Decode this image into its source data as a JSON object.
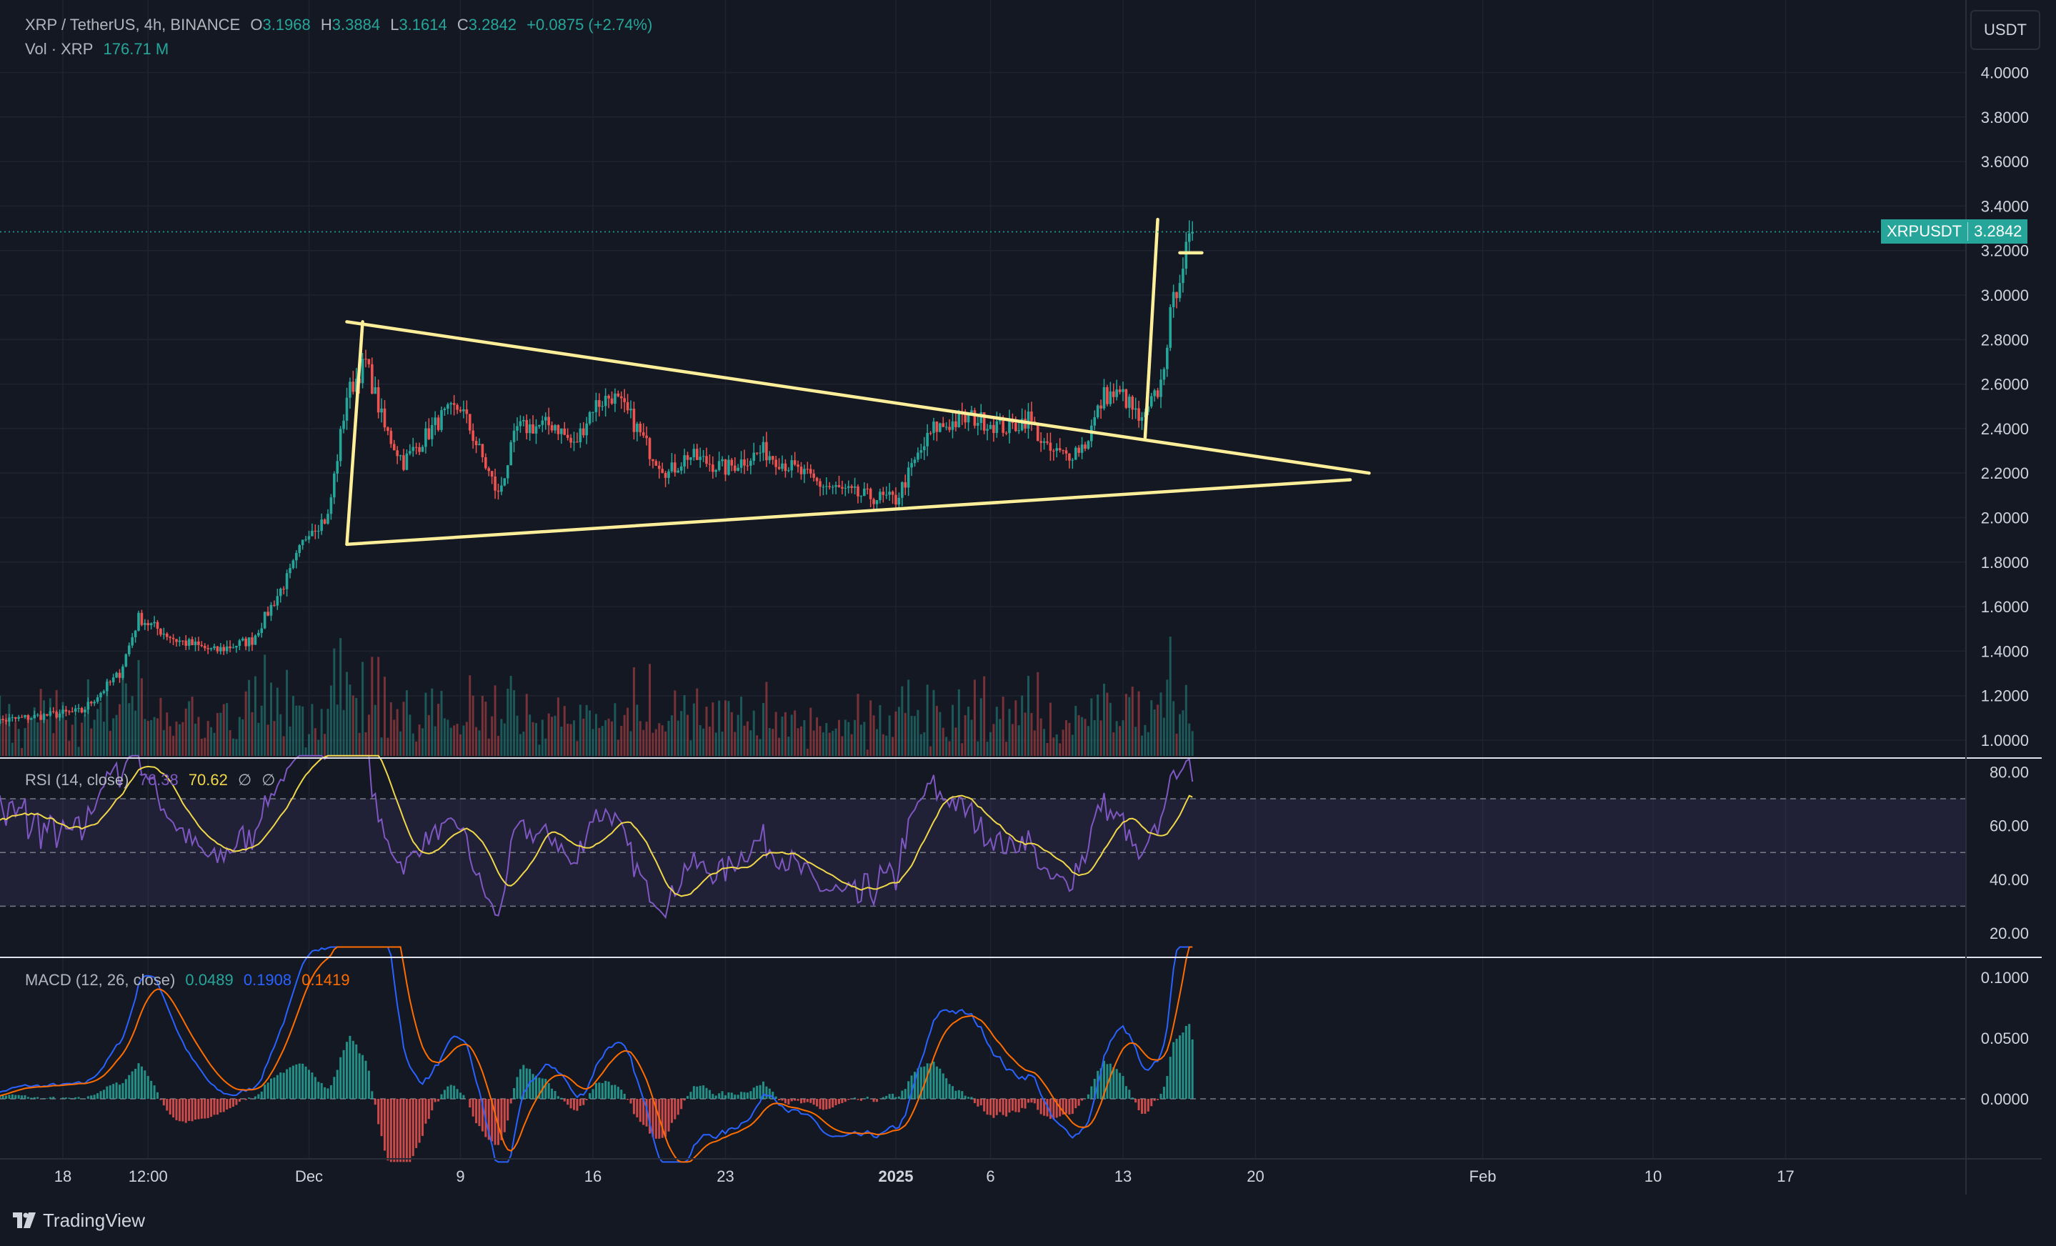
{
  "header": {
    "symbol_line": "XRP / TetherUS, 4h, BINANCE",
    "o_label": "O",
    "o_value": "3.1968",
    "h_label": "H",
    "h_value": "3.3884",
    "l_label": "L",
    "l_value": "3.1614",
    "c_label": "C",
    "c_value": "3.2842",
    "change": "+0.0875 (+2.74%)",
    "vol_label": "Vol · XRP",
    "vol_value": "176.71 M"
  },
  "currency_button": "USDT",
  "last_price_tag": {
    "symbol": "XRPUSDT",
    "price": "3.2842"
  },
  "rsi_legend": {
    "label": "RSI (14, close)",
    "rsi": "76.38",
    "ma": "70.62",
    "na1": "∅",
    "na2": "∅"
  },
  "macd_legend": {
    "label": "MACD (12, 26, close)",
    "hist": "0.0489",
    "macd": "0.1908",
    "signal": "0.1419"
  },
  "footer": {
    "brand": "TradingView"
  },
  "colors": {
    "up": "#26a69a",
    "down": "#ef5350",
    "rsi": "#7e57c2",
    "rsi_ma": "#f0d74a",
    "macd": "#2962ff",
    "signal": "#ff6d00",
    "trend": "#ffef9a"
  },
  "chart_data": [
    {
      "type": "candlestick",
      "title": "XRP / TetherUS, 4h, BINANCE",
      "ylabel": "USDT",
      "y_ticks": [
        "4.0000",
        "3.8000",
        "3.6000",
        "3.4000",
        "3.2000",
        "3.0000",
        "2.8000",
        "2.6000",
        "2.4000",
        "2.2000",
        "2.0000",
        "1.8000",
        "1.6000",
        "1.4000",
        "1.2000",
        "1.0000"
      ],
      "x_ticks": [
        "18",
        "12:00",
        "Dec",
        "9",
        "16",
        "23",
        "2025",
        "6",
        "13",
        "20",
        "Feb",
        "10",
        "17"
      ],
      "x_range": [
        "2024-11-14",
        "2025-02-21"
      ],
      "ylim": [
        0.99,
        4.1
      ],
      "last_price": 3.2842,
      "anchors": [
        {
          "date": "2024-11-14",
          "price": 1.08
        },
        {
          "date": "2024-11-19",
          "price": 1.13
        },
        {
          "date": "2024-11-21",
          "price": 1.3
        },
        {
          "date": "2024-11-22",
          "price": 1.55
        },
        {
          "date": "2024-11-24",
          "price": 1.45
        },
        {
          "date": "2024-11-26",
          "price": 1.4
        },
        {
          "date": "2024-11-28",
          "price": 1.45
        },
        {
          "date": "2024-11-30",
          "price": 1.75
        },
        {
          "date": "2024-12-01",
          "price": 1.95
        },
        {
          "date": "2024-12-02",
          "price": 2.0
        },
        {
          "date": "2024-12-03",
          "price": 2.55
        },
        {
          "date": "2024-12-04",
          "price": 2.7
        },
        {
          "date": "2024-12-05",
          "price": 2.4
        },
        {
          "date": "2024-12-06",
          "price": 2.25
        },
        {
          "date": "2024-12-08",
          "price": 2.45
        },
        {
          "date": "2024-12-09",
          "price": 2.5
        },
        {
          "date": "2024-12-10",
          "price": 2.3
        },
        {
          "date": "2024-12-11",
          "price": 2.1
        },
        {
          "date": "2024-12-12",
          "price": 2.4
        },
        {
          "date": "2024-12-14",
          "price": 2.42
        },
        {
          "date": "2024-12-15",
          "price": 2.32
        },
        {
          "date": "2024-12-16",
          "price": 2.5
        },
        {
          "date": "2024-12-17",
          "price": 2.55
        },
        {
          "date": "2024-12-18",
          "price": 2.45
        },
        {
          "date": "2024-12-19",
          "price": 2.3
        },
        {
          "date": "2024-12-20",
          "price": 2.2
        },
        {
          "date": "2024-12-21",
          "price": 2.28
        },
        {
          "date": "2024-12-23",
          "price": 2.22
        },
        {
          "date": "2024-12-25",
          "price": 2.3
        },
        {
          "date": "2024-12-27",
          "price": 2.2
        },
        {
          "date": "2024-12-28",
          "price": 2.15
        },
        {
          "date": "2024-12-30",
          "price": 2.1
        },
        {
          "date": "2025-01-01",
          "price": 2.08
        },
        {
          "date": "2025-01-02",
          "price": 2.25
        },
        {
          "date": "2025-01-03",
          "price": 2.4
        },
        {
          "date": "2025-01-05",
          "price": 2.45
        },
        {
          "date": "2025-01-07",
          "price": 2.4
        },
        {
          "date": "2025-01-08",
          "price": 2.45
        },
        {
          "date": "2025-01-09",
          "price": 2.3
        },
        {
          "date": "2025-01-10",
          "price": 2.28
        },
        {
          "date": "2025-01-11",
          "price": 2.33
        },
        {
          "date": "2025-01-12",
          "price": 2.55
        },
        {
          "date": "2025-01-13",
          "price": 2.55
        },
        {
          "date": "2025-01-14",
          "price": 2.42
        },
        {
          "date": "2025-01-15",
          "price": 2.6
        },
        {
          "date": "2025-01-15T12",
          "price": 2.9
        },
        {
          "date": "2025-01-16",
          "price": 3.1
        },
        {
          "date": "2025-01-16T16",
          "price": 3.28
        }
      ]
    },
    {
      "type": "line",
      "title": "RSI (14, close)",
      "y_ticks": [
        "80.00",
        "60.00",
        "40.00",
        "20.00"
      ],
      "bands": [
        70,
        50,
        30
      ],
      "series": [
        {
          "name": "RSI",
          "last": 76.38
        },
        {
          "name": "MA",
          "last": 70.62
        }
      ]
    },
    {
      "type": "line",
      "title": "MACD (12, 26, close)",
      "y_ticks": [
        "0.1000",
        "0.0500",
        "0.0000"
      ],
      "series": [
        {
          "name": "Histogram",
          "last": 0.0489
        },
        {
          "name": "MACD",
          "last": 0.1908
        },
        {
          "name": "Signal",
          "last": 0.1419
        }
      ]
    }
  ],
  "trendlines": [
    {
      "from": {
        "date": "2024-12-03",
        "price": 2.88
      },
      "to": {
        "date": "2025-01-26",
        "price": 2.2
      }
    },
    {
      "from": {
        "date": "2024-12-03",
        "price": 1.88
      },
      "to": {
        "date": "2025-01-25",
        "price": 2.17
      }
    },
    {
      "from": {
        "date": "2024-12-03",
        "price": 1.88
      },
      "to": {
        "date": "2024-12-03T20",
        "price": 2.88
      }
    },
    {
      "from": {
        "date": "2025-01-14T04",
        "price": 2.36
      },
      "to": {
        "date": "2025-01-14T20",
        "price": 3.34
      }
    },
    {
      "from": {
        "date": "2025-01-16",
        "price": 3.19
      },
      "to": {
        "date": "2025-01-17T04",
        "price": 3.19
      }
    }
  ]
}
